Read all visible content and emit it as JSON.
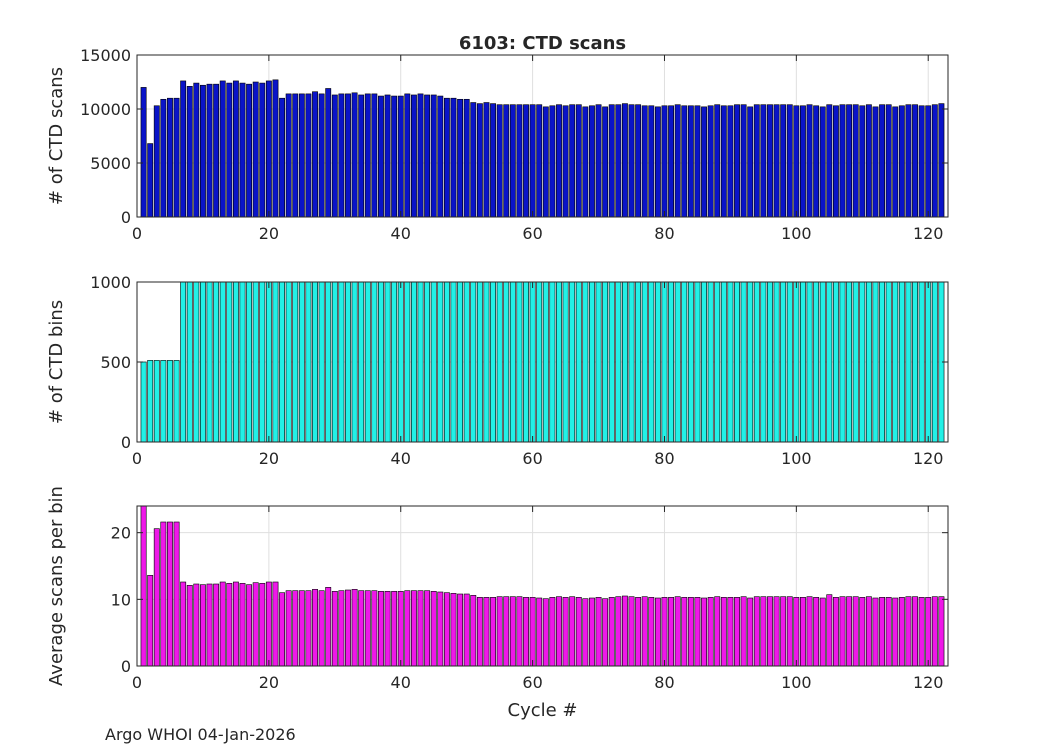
{
  "footer": "Argo WHOI 04-Jan-2026",
  "chart_data": [
    {
      "type": "bar",
      "title": "6103: CTD scans",
      "xlabel": "",
      "ylabel": "# of CTD scans",
      "xlim": [
        0,
        123
      ],
      "ylim": [
        0,
        15000
      ],
      "xticks": [
        0,
        20,
        40,
        60,
        80,
        100,
        120
      ],
      "yticks": [
        0,
        5000,
        10000,
        15000
      ],
      "grid": true,
      "color": "#0A14C8",
      "x": [
        1,
        2,
        3,
        4,
        5,
        6,
        7,
        8,
        9,
        10,
        11,
        12,
        13,
        14,
        15,
        16,
        17,
        18,
        19,
        20,
        21,
        22,
        23,
        24,
        25,
        26,
        27,
        28,
        29,
        30,
        31,
        32,
        33,
        34,
        35,
        36,
        37,
        38,
        39,
        40,
        41,
        42,
        43,
        44,
        45,
        46,
        47,
        48,
        49,
        50,
        51,
        52,
        53,
        54,
        55,
        56,
        57,
        58,
        59,
        60,
        61,
        62,
        63,
        64,
        65,
        66,
        67,
        68,
        69,
        70,
        71,
        72,
        73,
        74,
        75,
        76,
        77,
        78,
        79,
        80,
        81,
        82,
        83,
        84,
        85,
        86,
        87,
        88,
        89,
        90,
        91,
        92,
        93,
        94,
        95,
        96,
        97,
        98,
        99,
        100,
        101,
        102,
        103,
        104,
        105,
        106,
        107,
        108,
        109,
        110,
        111,
        112,
        113,
        114,
        115,
        116,
        117,
        118,
        119,
        120,
        121,
        122
      ],
      "values": [
        12000,
        6800,
        10300,
        10900,
        11000,
        11000,
        12600,
        12100,
        12400,
        12200,
        12300,
        12300,
        12600,
        12400,
        12600,
        12400,
        12300,
        12500,
        12400,
        12600,
        12700,
        11000,
        11400,
        11400,
        11400,
        11400,
        11600,
        11400,
        11900,
        11300,
        11400,
        11400,
        11500,
        11300,
        11400,
        11400,
        11200,
        11300,
        11200,
        11200,
        11400,
        11300,
        11400,
        11300,
        11300,
        11200,
        11000,
        11000,
        10900,
        10900,
        10600,
        10500,
        10600,
        10500,
        10400,
        10400,
        10400,
        10400,
        10400,
        10400,
        10400,
        10200,
        10300,
        10400,
        10300,
        10400,
        10400,
        10200,
        10300,
        10400,
        10200,
        10400,
        10400,
        10500,
        10400,
        10400,
        10300,
        10300,
        10200,
        10300,
        10300,
        10400,
        10300,
        10300,
        10300,
        10200,
        10300,
        10400,
        10300,
        10300,
        10400,
        10400,
        10200,
        10400,
        10400,
        10400,
        10400,
        10400,
        10400,
        10300,
        10300,
        10400,
        10300,
        10200,
        10400,
        10300,
        10400,
        10400,
        10400,
        10300,
        10400,
        10200,
        10400,
        10400,
        10200,
        10300,
        10400,
        10400,
        10300,
        10300,
        10400,
        10500
      ]
    },
    {
      "type": "bar",
      "title": "",
      "xlabel": "",
      "ylabel": "# of CTD bins",
      "xlim": [
        0,
        123
      ],
      "ylim": [
        0,
        1000
      ],
      "xticks": [
        0,
        20,
        40,
        60,
        80,
        100,
        120
      ],
      "yticks": [
        0,
        500,
        1000
      ],
      "grid": true,
      "color": "#22F0E6",
      "x": [
        1,
        2,
        3,
        4,
        5,
        6,
        7,
        8,
        9,
        10,
        11,
        12,
        13,
        14,
        15,
        16,
        17,
        18,
        19,
        20,
        21,
        22,
        23,
        24,
        25,
        26,
        27,
        28,
        29,
        30,
        31,
        32,
        33,
        34,
        35,
        36,
        37,
        38,
        39,
        40,
        41,
        42,
        43,
        44,
        45,
        46,
        47,
        48,
        49,
        50,
        51,
        52,
        53,
        54,
        55,
        56,
        57,
        58,
        59,
        60,
        61,
        62,
        63,
        64,
        65,
        66,
        67,
        68,
        69,
        70,
        71,
        72,
        73,
        74,
        75,
        76,
        77,
        78,
        79,
        80,
        81,
        82,
        83,
        84,
        85,
        86,
        87,
        88,
        89,
        90,
        91,
        92,
        93,
        94,
        95,
        96,
        97,
        98,
        99,
        100,
        101,
        102,
        103,
        104,
        105,
        106,
        107,
        108,
        109,
        110,
        111,
        112,
        113,
        114,
        115,
        116,
        117,
        118,
        119,
        120,
        121,
        122
      ],
      "values": [
        500,
        510,
        510,
        510,
        510,
        510,
        1000,
        1000,
        1000,
        1000,
        1000,
        1000,
        1000,
        1000,
        1000,
        1000,
        1000,
        1000,
        1000,
        1000,
        1000,
        1000,
        1000,
        1000,
        1000,
        1000,
        1000,
        1000,
        1000,
        1000,
        1000,
        1000,
        1000,
        1000,
        1000,
        1000,
        1000,
        1000,
        1000,
        1000,
        1000,
        1000,
        1000,
        1000,
        1000,
        1000,
        1000,
        1000,
        1000,
        1000,
        1000,
        1000,
        1000,
        1000,
        1000,
        1000,
        1000,
        1000,
        1000,
        1000,
        1000,
        1000,
        1000,
        1000,
        1000,
        1000,
        1000,
        1000,
        1000,
        1000,
        1000,
        1000,
        1000,
        1000,
        1000,
        1000,
        1000,
        1000,
        1000,
        1000,
        1000,
        1000,
        1000,
        1000,
        1000,
        1000,
        1000,
        1000,
        1000,
        1000,
        1000,
        1000,
        1000,
        1000,
        1000,
        1000,
        1000,
        1000,
        1000,
        1000,
        1000,
        1000,
        1000,
        1000,
        1000,
        1000,
        1000,
        1000,
        1000,
        1000,
        1000,
        1000,
        1000,
        1000,
        1000,
        1000,
        1000,
        1000,
        1000,
        1000,
        1000,
        1000
      ]
    },
    {
      "type": "bar",
      "title": "",
      "xlabel": "Cycle #",
      "ylabel": "Average scans per bin",
      "xlim": [
        0,
        123
      ],
      "ylim": [
        0,
        24
      ],
      "xticks": [
        0,
        20,
        40,
        60,
        80,
        100,
        120
      ],
      "yticks": [
        0,
        10,
        20
      ],
      "grid": true,
      "color": "#EE18E8",
      "x": [
        1,
        2,
        3,
        4,
        5,
        6,
        7,
        8,
        9,
        10,
        11,
        12,
        13,
        14,
        15,
        16,
        17,
        18,
        19,
        20,
        21,
        22,
        23,
        24,
        25,
        26,
        27,
        28,
        29,
        30,
        31,
        32,
        33,
        34,
        35,
        36,
        37,
        38,
        39,
        40,
        41,
        42,
        43,
        44,
        45,
        46,
        47,
        48,
        49,
        50,
        51,
        52,
        53,
        54,
        55,
        56,
        57,
        58,
        59,
        60,
        61,
        62,
        63,
        64,
        65,
        66,
        67,
        68,
        69,
        70,
        71,
        72,
        73,
        74,
        75,
        76,
        77,
        78,
        79,
        80,
        81,
        82,
        83,
        84,
        85,
        86,
        87,
        88,
        89,
        90,
        91,
        92,
        93,
        94,
        95,
        96,
        97,
        98,
        99,
        100,
        101,
        102,
        103,
        104,
        105,
        106,
        107,
        108,
        109,
        110,
        111,
        112,
        113,
        114,
        115,
        116,
        117,
        118,
        119,
        120,
        121,
        122
      ],
      "values": [
        24,
        13.6,
        20.6,
        21.6,
        21.6,
        21.6,
        12.6,
        12.1,
        12.3,
        12.2,
        12.3,
        12.3,
        12.6,
        12.4,
        12.6,
        12.4,
        12.2,
        12.5,
        12.4,
        12.6,
        12.6,
        11.0,
        11.3,
        11.3,
        11.3,
        11.3,
        11.5,
        11.3,
        11.8,
        11.2,
        11.3,
        11.4,
        11.5,
        11.3,
        11.3,
        11.3,
        11.2,
        11.2,
        11.2,
        11.2,
        11.3,
        11.3,
        11.3,
        11.3,
        11.2,
        11.1,
        11.0,
        10.9,
        10.8,
        10.8,
        10.6,
        10.3,
        10.3,
        10.3,
        10.4,
        10.4,
        10.4,
        10.4,
        10.3,
        10.3,
        10.2,
        10.1,
        10.3,
        10.4,
        10.3,
        10.4,
        10.3,
        10.1,
        10.2,
        10.3,
        10.1,
        10.3,
        10.4,
        10.5,
        10.4,
        10.3,
        10.4,
        10.3,
        10.2,
        10.3,
        10.3,
        10.4,
        10.3,
        10.3,
        10.3,
        10.2,
        10.3,
        10.4,
        10.3,
        10.3,
        10.3,
        10.4,
        10.2,
        10.4,
        10.4,
        10.4,
        10.4,
        10.4,
        10.4,
        10.3,
        10.3,
        10.4,
        10.3,
        10.2,
        10.7,
        10.3,
        10.4,
        10.4,
        10.4,
        10.3,
        10.4,
        10.2,
        10.3,
        10.3,
        10.2,
        10.3,
        10.4,
        10.4,
        10.3,
        10.3,
        10.4,
        10.4
      ]
    }
  ]
}
